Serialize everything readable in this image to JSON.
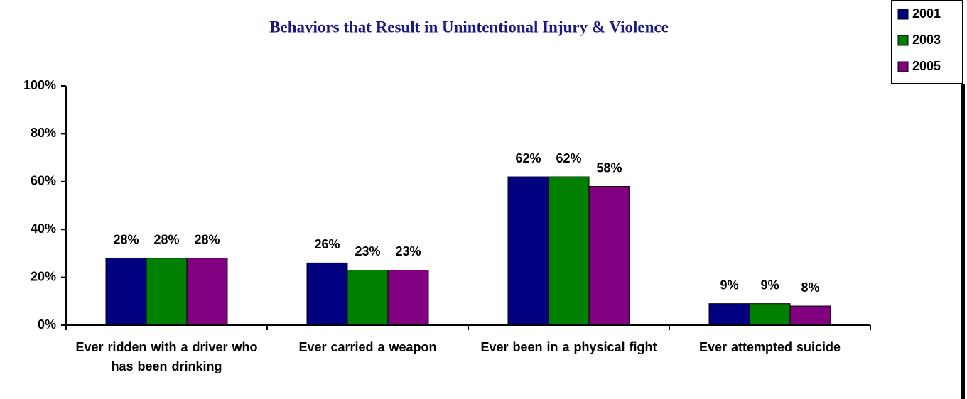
{
  "chart_data": {
    "type": "bar",
    "title": "Behaviors that Result in Unintentional Injury & Violence",
    "categories": [
      "Ever ridden with a driver who has been drinking",
      "Ever carried a weapon",
      "Ever been in a physical fight",
      "Ever attempted suicide"
    ],
    "series": [
      {
        "name": "2001",
        "color": "#000080",
        "values": [
          28,
          26,
          62,
          9
        ],
        "value_labels": [
          "28%",
          "26%",
          "62%",
          "9%"
        ]
      },
      {
        "name": "2003",
        "color": "#008000",
        "values": [
          28,
          23,
          62,
          9
        ],
        "value_labels": [
          "28%",
          "23%",
          "62%",
          "9%"
        ]
      },
      {
        "name": "2005",
        "color": "#800080",
        "values": [
          28,
          23,
          58,
          8
        ],
        "value_labels": [
          "28%",
          "23%",
          "58%",
          "8%"
        ]
      }
    ],
    "ylim": [
      0,
      100
    ],
    "yticks": [
      {
        "value": 0,
        "label": "0%"
      },
      {
        "value": 20,
        "label": "20%"
      },
      {
        "value": 40,
        "label": "40%"
      },
      {
        "value": 60,
        "label": "60%"
      },
      {
        "value": 80,
        "label": "80%"
      },
      {
        "value": 100,
        "label": "100%"
      }
    ],
    "grid": false,
    "legend": "top-right"
  }
}
